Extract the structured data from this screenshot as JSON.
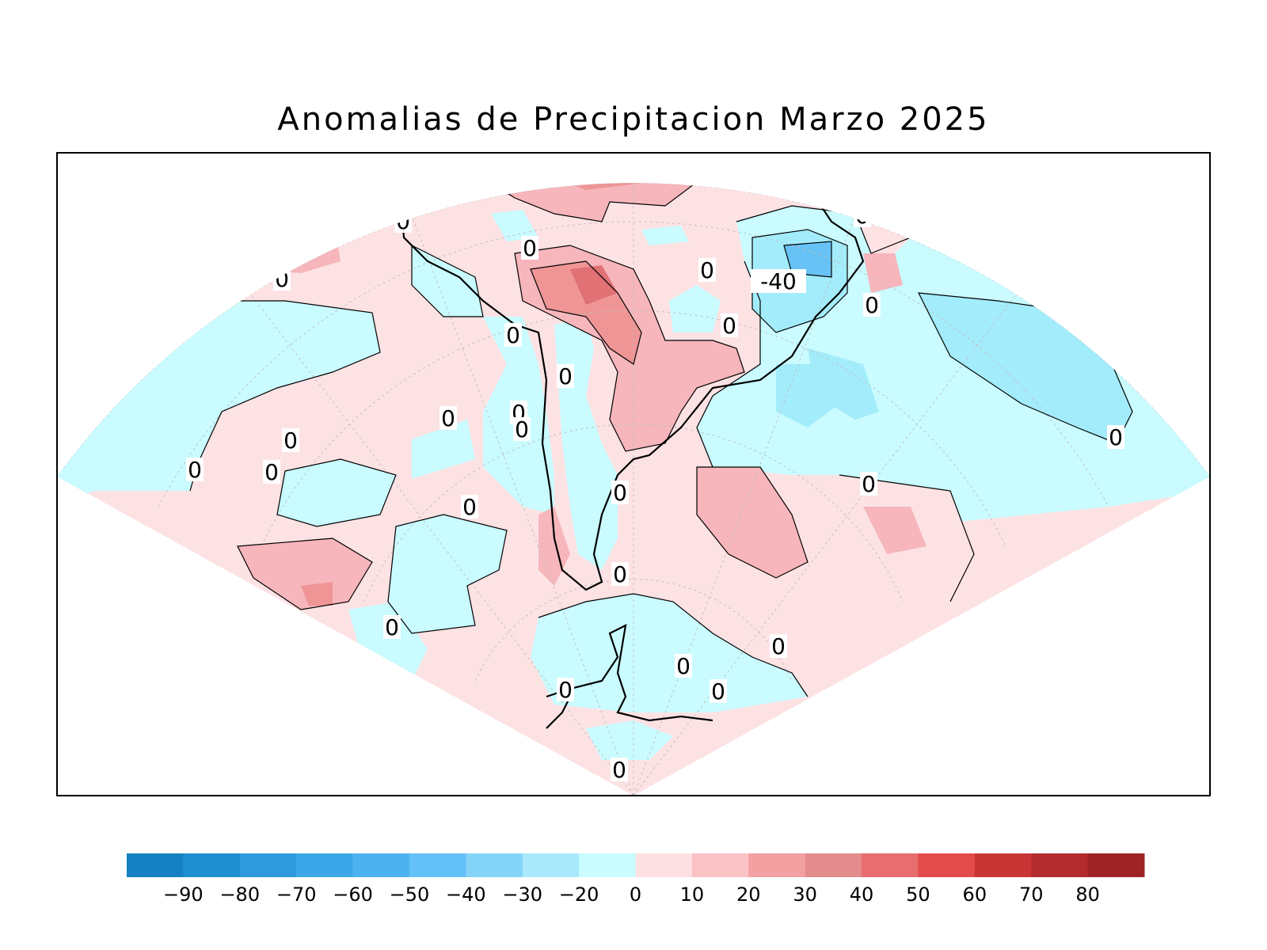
{
  "title": "Anomalias de Precipitacion Marzo 2025",
  "colors": {
    "positive_light": "#fde2e4",
    "positive_med": "#f6b6bb",
    "positive_strong": "#ef9596",
    "positive_dark": "#e07174",
    "negative_light": "#c9fbff",
    "negative_med": "#a3ecfb",
    "negative_strong": "#67c2f5",
    "coastline": "#000000",
    "contour": "#000000"
  },
  "contour_labels": [
    "0",
    "0",
    "0",
    "0",
    "0",
    "0",
    "0",
    "0",
    "0",
    "0",
    "0",
    "0",
    "0",
    "0",
    "0",
    "0",
    "0",
    "0",
    "0",
    "0",
    "0",
    "0",
    "0",
    "0",
    "0",
    "0",
    "0",
    "0",
    "-40"
  ],
  "colorbar": {
    "ticks": [
      "-90",
      "-80",
      "-70",
      "-60",
      "-50",
      "-40",
      "-30",
      "-20",
      "0",
      "10",
      "20",
      "30",
      "40",
      "50",
      "60",
      "70",
      "80"
    ],
    "colors": [
      "#1681c2",
      "#1f8fd1",
      "#2d9ade",
      "#3aa8e8",
      "#4db3f0",
      "#63c1f7",
      "#84d3f9",
      "#a8e9fc",
      "#c8fcff",
      "#fde0e2",
      "#fbc3c6",
      "#f3a0a2",
      "#e38b8d",
      "#e76d6f",
      "#e24a4b",
      "#c93535",
      "#b32b2c",
      "#9f2225"
    ]
  }
}
